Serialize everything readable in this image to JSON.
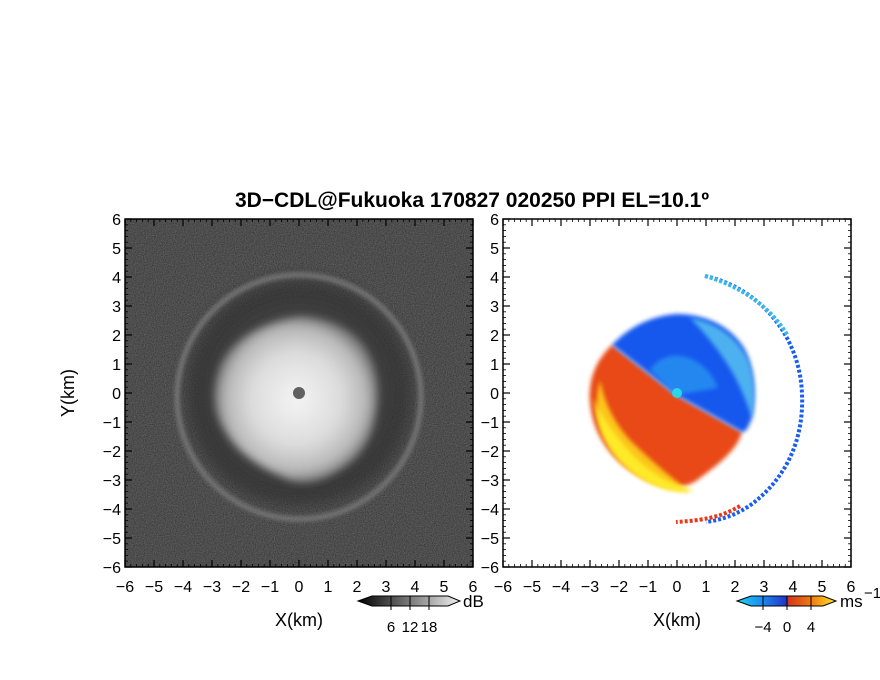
{
  "chart_data": [
    {
      "type": "heatmap",
      "title": "3D−CDL@Fukuoka 170827 020250 PPI EL=10.1º",
      "variable": "reflectivity-grayscale",
      "xlabel": "X(km)",
      "ylabel": "Y(km)",
      "xlim": [
        -6,
        6
      ],
      "ylim": [
        -6,
        6
      ],
      "x_ticks": [
        "−6",
        "−5",
        "−4",
        "−3",
        "−2",
        "−1",
        "0",
        "1",
        "2",
        "3",
        "4",
        "5",
        "6"
      ],
      "y_ticks": [
        "6",
        "5",
        "4",
        "3",
        "2",
        "1",
        "0",
        "−1",
        "−2",
        "−3",
        "−4",
        "−5",
        "−6"
      ],
      "features": {
        "radar_center": [
          0,
          0
        ],
        "bright_echo_radius_km": 2.7,
        "ring_radius_km": 4.2
      },
      "colorbar": {
        "unit": "dB",
        "ticks": [
          "6",
          "12",
          "18"
        ],
        "range": [
          0,
          24
        ],
        "tick_values": [
          6,
          12,
          18
        ]
      }
    },
    {
      "type": "heatmap",
      "variable": "doppler-velocity",
      "xlabel": "X(km)",
      "ylabel": "",
      "xlim": [
        -6,
        6
      ],
      "ylim": [
        -6,
        6
      ],
      "x_ticks": [
        "−6",
        "−5",
        "−4",
        "−3",
        "−2",
        "−1",
        "0",
        "1",
        "2",
        "3",
        "4",
        "5",
        "6"
      ],
      "y_ticks": [
        "6",
        "5",
        "4",
        "3",
        "2",
        "1",
        "0",
        "−1",
        "−2",
        "−3",
        "−4",
        "−5",
        "−6"
      ],
      "features": {
        "approaching_sector": "northeast (blue)",
        "receding_sector": "southwest (red/yellow)",
        "echo_radius_km": 3.0,
        "ring_radius_km": 4.2
      },
      "colorbar": {
        "unit": "ms",
        "unit_exponent": "−1",
        "ticks": [
          "−4",
          "0",
          "4"
        ],
        "range": [
          -6,
          6
        ],
        "tick_values": [
          -4,
          0,
          4
        ]
      }
    }
  ],
  "colors": {
    "background": "#ffffff",
    "frame": "#000000",
    "noise": "#2e2e2e",
    "echo_bright": "#f2f2f2",
    "velocity_blue": "#1a5ef0",
    "velocity_cyan": "#22c8ee",
    "velocity_red": "#e83818",
    "velocity_yellow": "#ffe61a"
  }
}
